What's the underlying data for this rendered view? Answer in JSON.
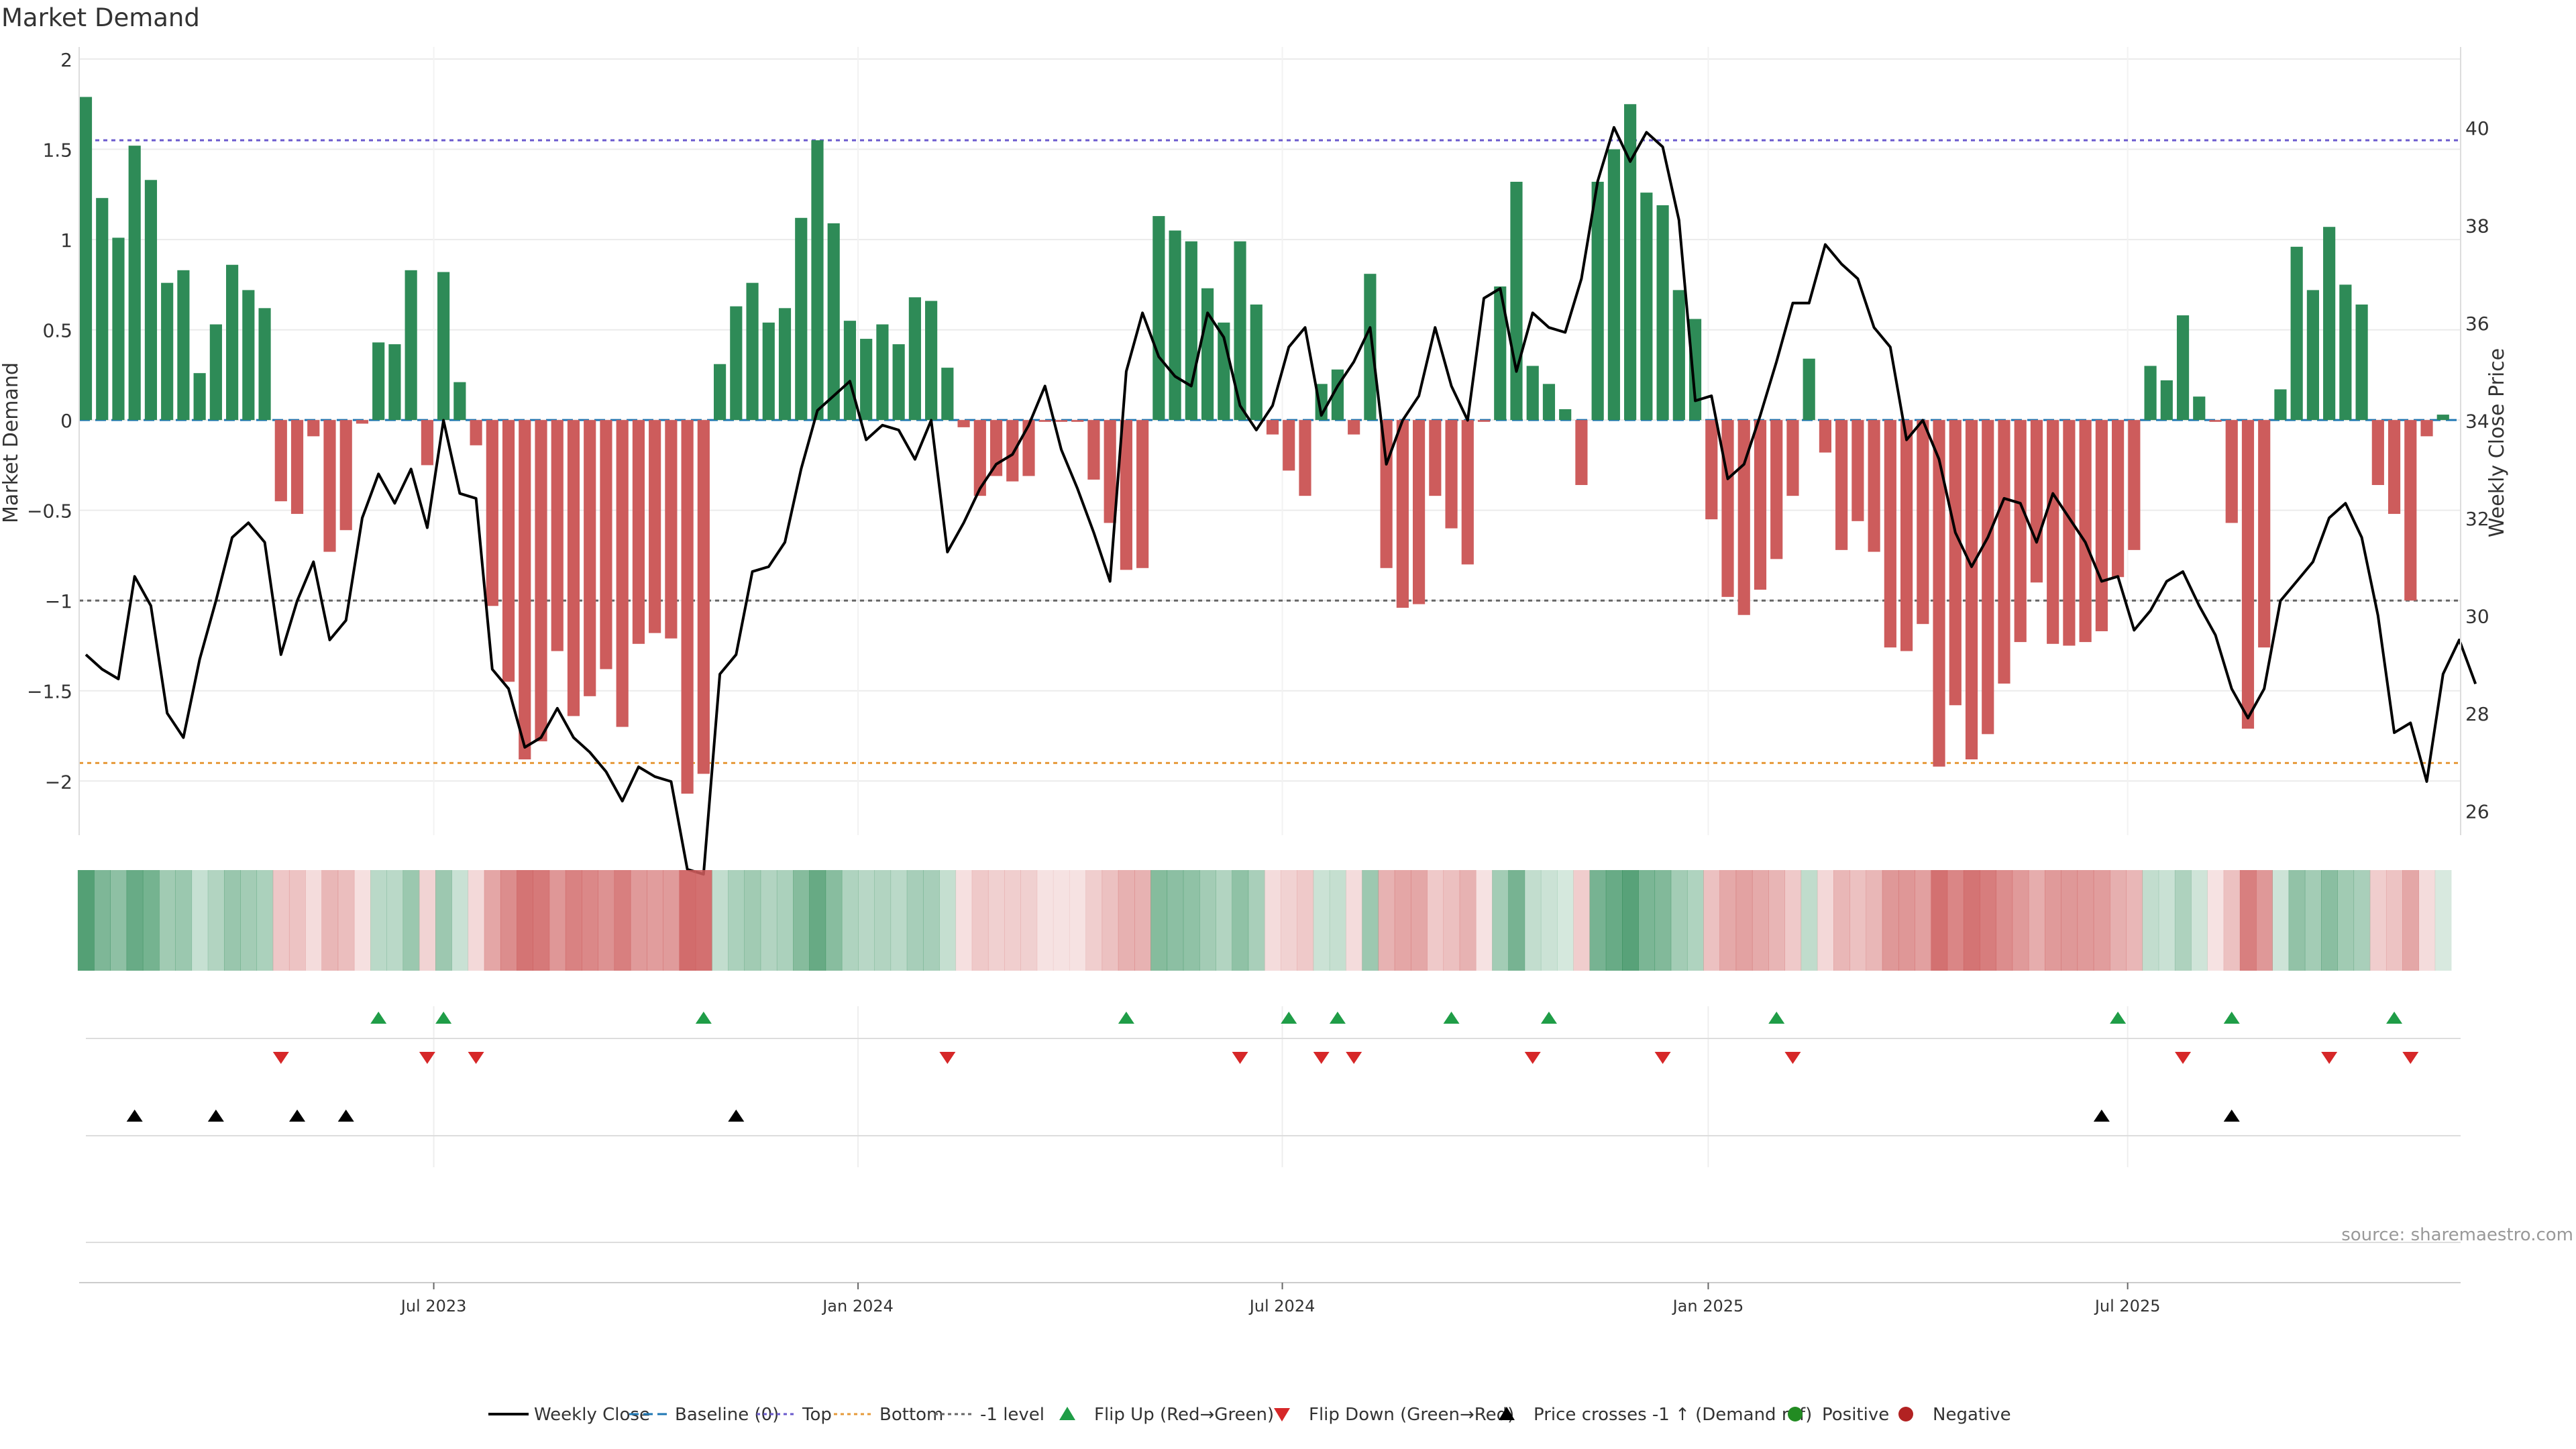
{
  "chart_data": {
    "type": "bar",
    "title": "Market Demand",
    "ylabel": "Market Demand",
    "y2label": "Weekly Close Price",
    "ylim": [
      -2.3,
      2.0
    ],
    "y2lim": [
      25.5,
      41.4
    ],
    "yticks": [
      2,
      1.5,
      1,
      0.5,
      0,
      -0.5,
      -1,
      -1.5,
      -2
    ],
    "yticklabels": [
      "2",
      "1.5",
      "1",
      "0.5",
      "0",
      "−0.5",
      "−1",
      "−1.5",
      "−2"
    ],
    "y2ticks": [
      40,
      38,
      36,
      34,
      32,
      30,
      28,
      26
    ],
    "y2ticklabels": [
      "40",
      "38",
      "36",
      "34",
      "32",
      "30",
      "28",
      "26"
    ],
    "x_ticks": [
      {
        "label": "Jul 2023",
        "index": 21.4
      },
      {
        "label": "Jan 2024",
        "index": 47.5
      },
      {
        "label": "Jul 2024",
        "index": 73.6
      },
      {
        "label": "Jan 2025",
        "index": 99.8
      },
      {
        "label": "Jul 2025",
        "index": 125.6
      }
    ],
    "reference_lines": {
      "top": 1.55,
      "bottom": -1.9,
      "minus_one": -1.0,
      "baseline": 0
    },
    "demand": [
      1.79,
      1.23,
      1.01,
      1.52,
      1.33,
      0.76,
      0.83,
      0.26,
      0.53,
      0.86,
      0.72,
      0.62,
      -0.45,
      -0.52,
      -0.09,
      -0.73,
      -0.61,
      -0.02,
      0.43,
      0.42,
      0.83,
      -0.25,
      0.82,
      0.21,
      -0.14,
      -1.03,
      -1.45,
      -1.88,
      -1.78,
      -1.28,
      -1.64,
      -1.53,
      -1.38,
      -1.7,
      -1.24,
      -1.18,
      -1.21,
      -2.07,
      -1.96,
      0.31,
      0.63,
      0.76,
      0.54,
      0.62,
      1.12,
      1.55,
      1.09,
      0.55,
      0.45,
      0.53,
      0.42,
      0.68,
      0.66,
      0.29,
      -0.04,
      -0.42,
      -0.31,
      -0.34,
      -0.31,
      -0.01,
      -0.01,
      -0.01,
      -0.33,
      -0.57,
      -0.83,
      -0.82,
      1.13,
      1.05,
      0.99,
      0.73,
      0.54,
      0.99,
      0.64,
      -0.08,
      -0.28,
      -0.42,
      0.2,
      0.28,
      -0.08,
      0.81,
      -0.82,
      -1.04,
      -1.02,
      -0.42,
      -0.6,
      -0.8,
      -0.01,
      0.74,
      1.32,
      0.3,
      0.2,
      0.06,
      -0.36,
      1.32,
      1.5,
      1.75,
      1.26,
      1.19,
      0.72,
      0.56,
      -0.55,
      -0.98,
      -1.08,
      -0.94,
      -0.77,
      -0.42,
      0.34,
      -0.18,
      -0.72,
      -0.56,
      -0.73,
      -1.26,
      -1.28,
      -1.13,
      -1.92,
      -1.58,
      -1.88,
      -1.74,
      -1.46,
      -1.23,
      -0.9,
      -1.24,
      -1.25,
      -1.23,
      -1.17,
      -0.87,
      -0.72,
      0.3,
      0.22,
      0.58,
      0.13,
      -0.01,
      -0.57,
      -1.71,
      -1.26,
      0.17,
      0.96,
      0.72,
      1.07,
      0.75,
      0.64,
      -0.36,
      -0.52,
      -1.0,
      -0.09,
      0.03
    ],
    "price": [
      29.2,
      28.9,
      28.7,
      30.8,
      30.2,
      28.0,
      27.5,
      29.1,
      30.3,
      31.6,
      31.9,
      31.5,
      29.2,
      30.3,
      31.1,
      29.5,
      29.9,
      32.0,
      32.9,
      32.3,
      33.0,
      31.8,
      34.0,
      32.5,
      32.4,
      28.9,
      28.5,
      27.3,
      27.5,
      28.1,
      27.5,
      27.2,
      26.8,
      26.2,
      26.9,
      26.7,
      26.6,
      24.8,
      24.7,
      28.8,
      29.2,
      30.9,
      31.0,
      31.5,
      33.0,
      34.2,
      34.5,
      34.8,
      33.6,
      33.9,
      33.8,
      33.2,
      34.0,
      31.3,
      31.9,
      32.6,
      33.1,
      33.3,
      33.9,
      34.7,
      33.4,
      32.6,
      31.7,
      30.7,
      35.0,
      36.2,
      35.3,
      34.9,
      34.7,
      36.2,
      35.7,
      34.3,
      33.8,
      34.3,
      35.5,
      35.9,
      34.1,
      34.7,
      35.2,
      35.9,
      33.1,
      34.0,
      34.5,
      35.9,
      34.7,
      34.0,
      36.5,
      36.7,
      35.0,
      36.2,
      35.9,
      35.8,
      36.9,
      38.9,
      40.0,
      39.3,
      39.9,
      39.6,
      38.1,
      34.4,
      34.5,
      32.8,
      33.1,
      34.1,
      35.2,
      36.4,
      36.4,
      37.6,
      37.2,
      36.9,
      35.9,
      35.5,
      33.6,
      34.0,
      33.2,
      31.7,
      31.0,
      31.6,
      32.4,
      32.3,
      31.5,
      32.5,
      32.0,
      31.5,
      30.7,
      30.8,
      29.7,
      30.1,
      30.7,
      30.9,
      30.2,
      29.6,
      28.5,
      27.9,
      28.5,
      30.3,
      30.7,
      31.1,
      32.0,
      32.3,
      31.6,
      30.0,
      27.6,
      27.8,
      26.6,
      28.8,
      29.5,
      28.6
    ],
    "flip_up": [
      18,
      22,
      38,
      64,
      74,
      77,
      84,
      90,
      104,
      125,
      132,
      142
    ],
    "flip_down": [
      12,
      21,
      24,
      53,
      71,
      76,
      78,
      89,
      97,
      105,
      129,
      138,
      143
    ],
    "price_cross": [
      3,
      8,
      13,
      16,
      40,
      124,
      132
    ],
    "source": "source: sharemaestro.com",
    "legend": [
      {
        "label": "Weekly Close",
        "type": "line"
      },
      {
        "label": "Baseline (0)",
        "type": "dash"
      },
      {
        "label": "Top",
        "type": "dotted"
      },
      {
        "label": "Bottom",
        "type": "dotted"
      },
      {
        "label": "-1 level",
        "type": "dotted"
      },
      {
        "label": "Flip Up (Red→Green)",
        "type": "tri-up"
      },
      {
        "label": "Flip Down (Green→Red)",
        "type": "tri-down"
      },
      {
        "label": "Price crosses -1 ↑ (Demand ref)",
        "type": "tri-up"
      },
      {
        "label": "Positive",
        "type": "dot"
      },
      {
        "label": "Negative",
        "type": "dot"
      }
    ]
  },
  "colors": {
    "positive": "#2e8b57",
    "negative": "#cd5c5c",
    "price": "#000000",
    "top": "#6a5acd",
    "bottom": "#e69a3a",
    "minus_one": "#666666",
    "baseline": "#1f77b4",
    "flip_up": "#1f9d47",
    "flip_down": "#d62728",
    "cross": "#000000",
    "grid": "#ebebeb",
    "legend_positive": "#228b22",
    "legend_negative": "#b22222"
  }
}
